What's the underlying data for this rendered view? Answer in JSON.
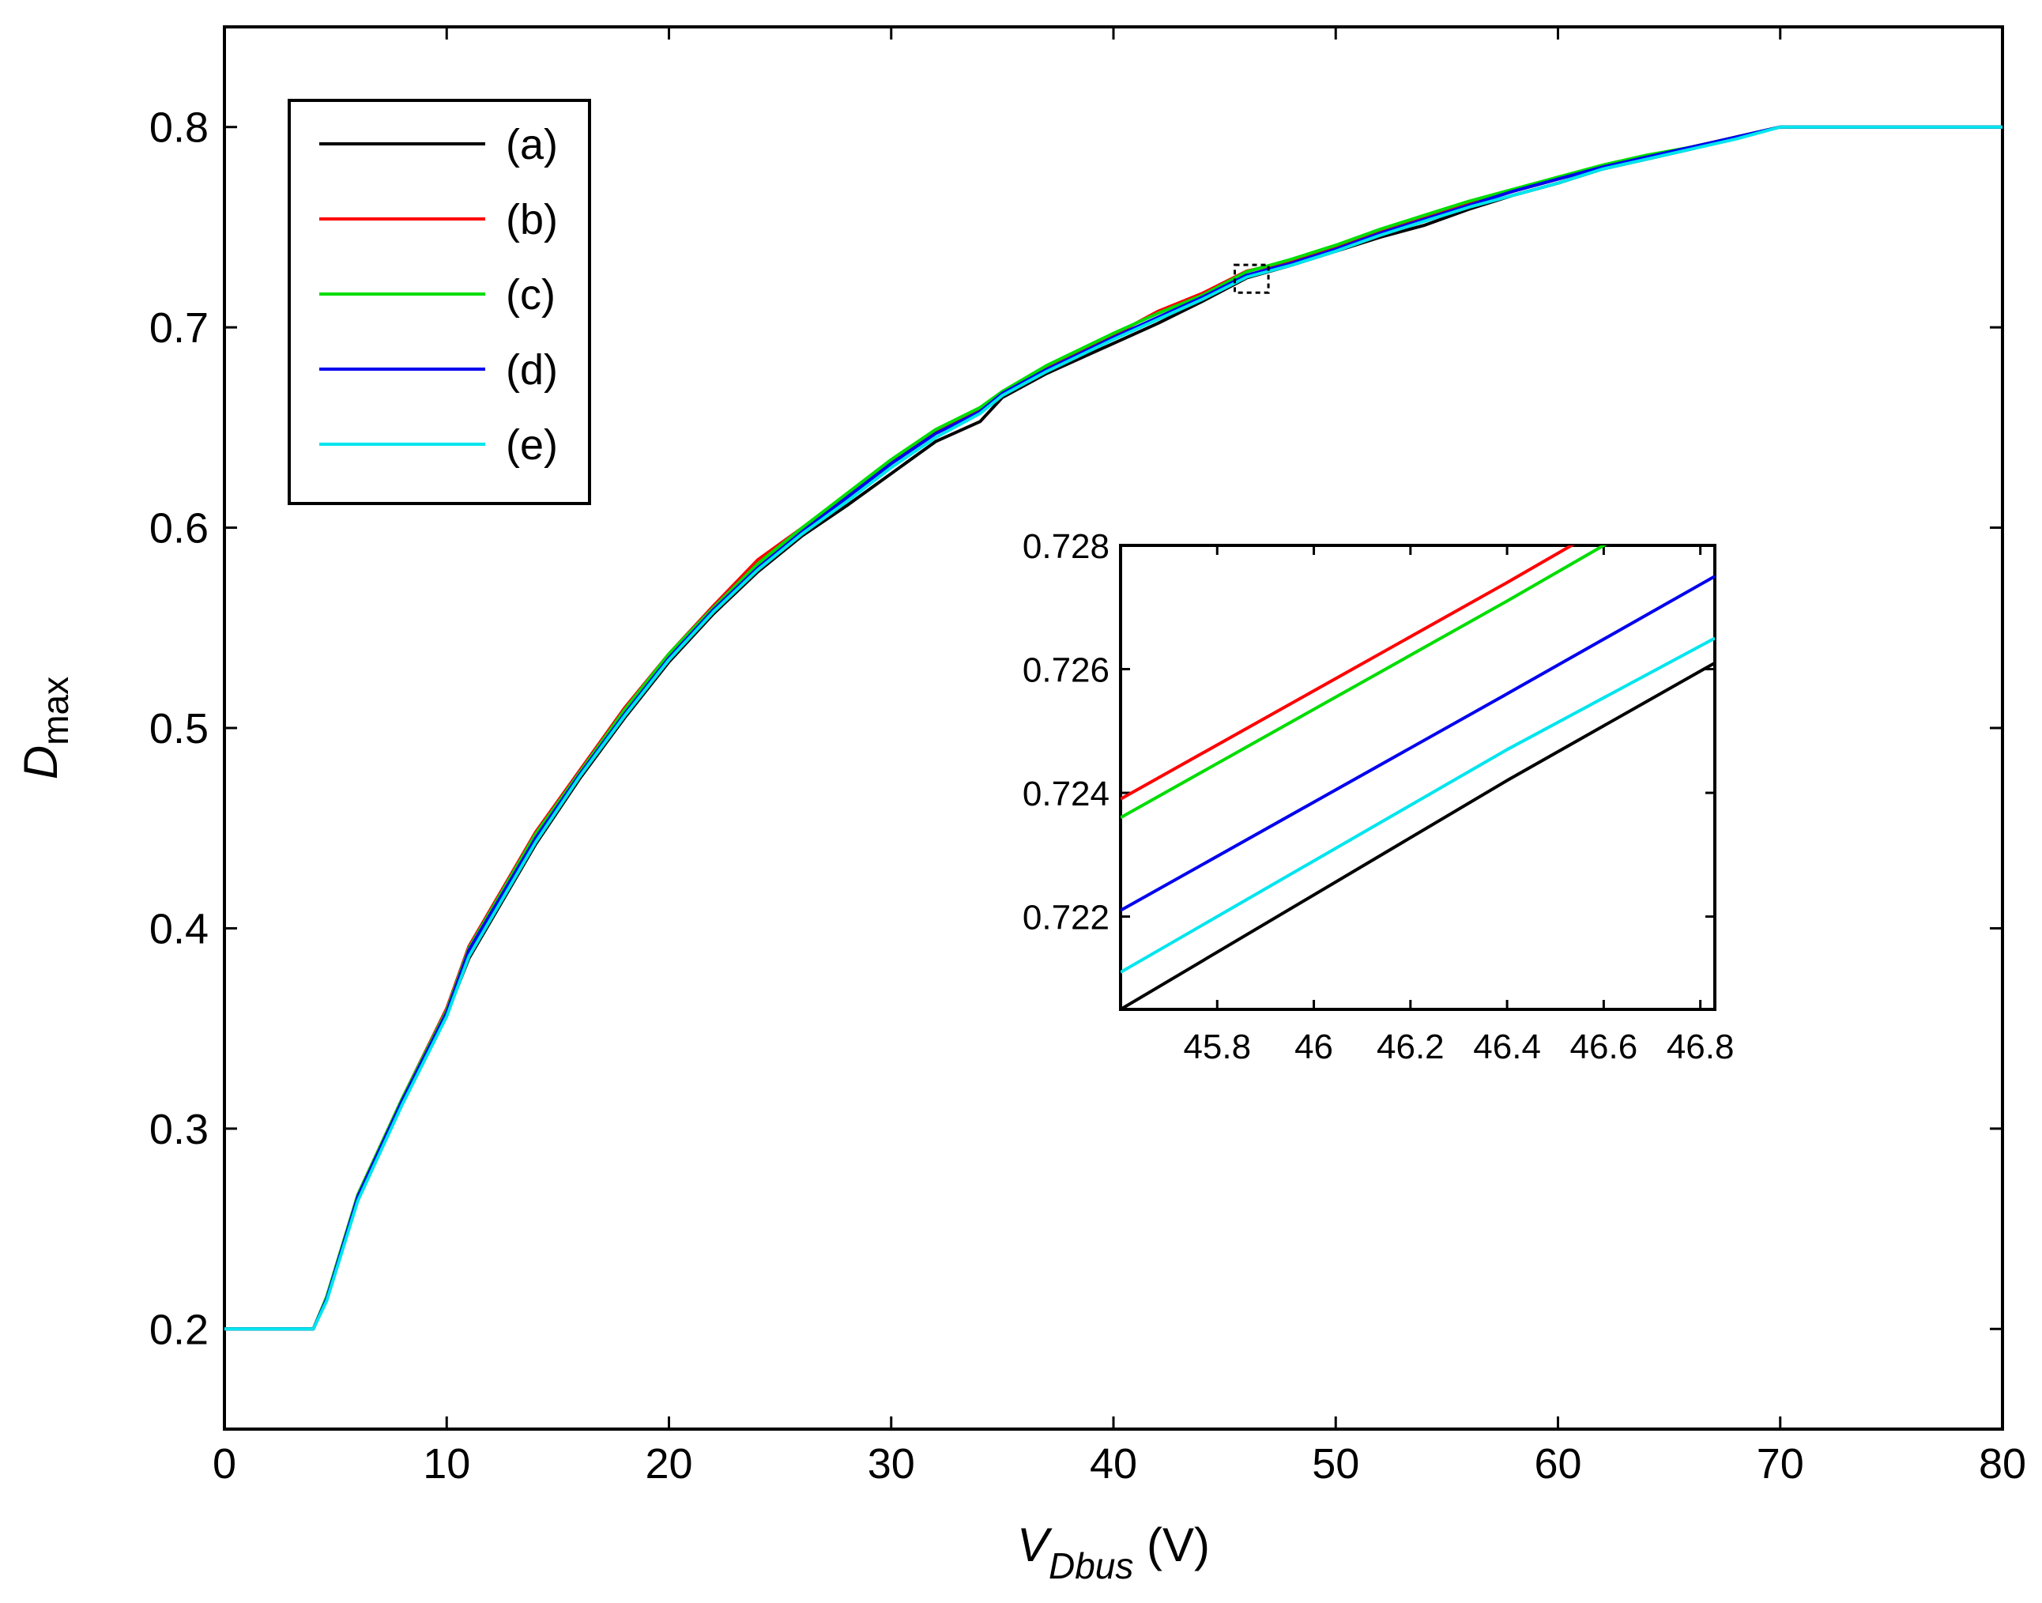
{
  "chart_data": {
    "type": "line",
    "title": "",
    "xlabel": {
      "main": "V",
      "subscript": "Dbus",
      "unit": " (V)"
    },
    "ylabel": {
      "main": "D",
      "subscript": "max"
    },
    "xlim": [
      0,
      80
    ],
    "ylim": [
      0.15,
      0.85
    ],
    "xticks": [
      0,
      10,
      20,
      30,
      40,
      50,
      60,
      70,
      80
    ],
    "yticks": [
      0.2,
      0.3,
      0.4,
      0.5,
      0.6,
      0.7,
      0.8
    ],
    "legend_position": "top-left",
    "zoom_box": {
      "x": [
        45.6,
        46.83
      ],
      "y": [
        0.7205,
        0.728
      ]
    },
    "series": [
      {
        "name": "(a)",
        "color": "#000000",
        "x": [
          0,
          4,
          4.6,
          6,
          8,
          10,
          11,
          14,
          16,
          18,
          20,
          22,
          24,
          26,
          28,
          30,
          32,
          34,
          35,
          37,
          40,
          42,
          44,
          46,
          48,
          50,
          52,
          54,
          56,
          58,
          60,
          62,
          64,
          66,
          68,
          70,
          80
        ],
        "y": [
          0.2,
          0.2,
          0.215,
          0.265,
          0.313,
          0.357,
          0.385,
          0.442,
          0.475,
          0.505,
          0.533,
          0.557,
          0.578,
          0.596,
          0.611,
          0.627,
          0.643,
          0.653,
          0.665,
          0.677,
          0.692,
          0.702,
          0.713,
          0.7247,
          0.731,
          0.738,
          0.745,
          0.751,
          0.759,
          0.766,
          0.772,
          0.779,
          0.784,
          0.789,
          0.795,
          0.8,
          0.8
        ]
      },
      {
        "name": "(b)",
        "color": "#ff0000",
        "x": [
          0,
          4,
          4.6,
          6,
          8,
          10,
          11,
          14,
          16,
          18,
          20,
          22,
          24,
          26,
          28,
          30,
          32,
          34,
          35,
          37,
          40,
          42,
          44,
          46,
          48,
          50,
          52,
          54,
          56,
          58,
          60,
          62,
          64,
          66,
          68,
          70,
          80
        ],
        "y": [
          0.2,
          0.2,
          0.216,
          0.267,
          0.315,
          0.36,
          0.391,
          0.448,
          0.479,
          0.51,
          0.537,
          0.561,
          0.584,
          0.6,
          0.616,
          0.633,
          0.648,
          0.659,
          0.667,
          0.68,
          0.696,
          0.708,
          0.717,
          0.7281,
          0.733,
          0.74,
          0.748,
          0.755,
          0.762,
          0.768,
          0.774,
          0.78,
          0.785,
          0.79,
          0.795,
          0.8,
          0.8
        ]
      },
      {
        "name": "(c)",
        "color": "#00dd00",
        "x": [
          0,
          4,
          4.6,
          6,
          8,
          10,
          11,
          14,
          16,
          18,
          20,
          22,
          24,
          26,
          28,
          30,
          32,
          34,
          35,
          37,
          40,
          42,
          44,
          46,
          48,
          50,
          52,
          54,
          56,
          58,
          60,
          62,
          64,
          66,
          68,
          70,
          80
        ],
        "y": [
          0.2,
          0.2,
          0.216,
          0.267,
          0.315,
          0.359,
          0.39,
          0.447,
          0.478,
          0.509,
          0.537,
          0.56,
          0.582,
          0.6,
          0.617,
          0.634,
          0.649,
          0.66,
          0.668,
          0.681,
          0.697,
          0.707,
          0.716,
          0.7278,
          0.734,
          0.741,
          0.749,
          0.756,
          0.763,
          0.769,
          0.775,
          0.781,
          0.786,
          0.79,
          0.795,
          0.8,
          0.8
        ]
      },
      {
        "name": "(d)",
        "color": "#0000ee",
        "x": [
          0,
          4,
          4.6,
          6,
          8,
          10,
          11,
          14,
          16,
          18,
          20,
          22,
          24,
          26,
          28,
          30,
          32,
          34,
          35,
          37,
          40,
          42,
          44,
          46,
          48,
          50,
          52,
          54,
          56,
          58,
          60,
          62,
          64,
          66,
          68,
          70,
          80
        ],
        "y": [
          0.2,
          0.2,
          0.215,
          0.266,
          0.314,
          0.358,
          0.389,
          0.445,
          0.477,
          0.507,
          0.535,
          0.559,
          0.58,
          0.598,
          0.615,
          0.632,
          0.647,
          0.658,
          0.667,
          0.679,
          0.695,
          0.705,
          0.715,
          0.7261,
          0.732,
          0.739,
          0.747,
          0.754,
          0.761,
          0.768,
          0.774,
          0.78,
          0.785,
          0.79,
          0.795,
          0.8,
          0.8
        ]
      },
      {
        "name": "(e)",
        "color": "#00e5ee",
        "x": [
          0,
          4,
          4.6,
          6,
          8,
          10,
          11,
          14,
          16,
          18,
          20,
          22,
          24,
          26,
          28,
          30,
          32,
          34,
          35,
          37,
          40,
          42,
          44,
          46,
          48,
          50,
          52,
          54,
          56,
          58,
          60,
          62,
          64,
          66,
          68,
          70,
          80
        ],
        "y": [
          0.2,
          0.2,
          0.214,
          0.264,
          0.312,
          0.356,
          0.386,
          0.443,
          0.476,
          0.506,
          0.534,
          0.558,
          0.579,
          0.597,
          0.613,
          0.63,
          0.645,
          0.657,
          0.666,
          0.678,
          0.694,
          0.704,
          0.714,
          0.7251,
          0.731,
          0.738,
          0.746,
          0.753,
          0.76,
          0.766,
          0.772,
          0.779,
          0.784,
          0.789,
          0.794,
          0.8,
          0.8
        ]
      }
    ],
    "inset": {
      "xlim": [
        45.6,
        46.83
      ],
      "ylim": [
        0.7205,
        0.728
      ],
      "xticks": [
        45.8,
        46,
        46.2,
        46.4,
        46.6,
        46.8
      ],
      "yticks": [
        0.722,
        0.724,
        0.726,
        0.728
      ],
      "xtick_labels": [
        "45.8",
        "46",
        "46.2",
        "46.4",
        "46.6",
        "46.8"
      ],
      "ytick_labels": [
        "0.722",
        "0.724",
        "0.726",
        "0.728"
      ],
      "series": [
        {
          "name": "(a)",
          "color": "#000000",
          "x": [
            45.6,
            46.4,
            46.83
          ],
          "y": [
            0.7205,
            0.7242,
            0.7261
          ]
        },
        {
          "name": "(b)",
          "color": "#ff0000",
          "x": [
            45.6,
            46.4,
            46.6,
            46.83
          ],
          "y": [
            0.7239,
            0.7274,
            0.7283,
            0.7293
          ]
        },
        {
          "name": "(c)",
          "color": "#00dd00",
          "x": [
            45.6,
            46.4,
            46.6,
            46.83
          ],
          "y": [
            0.7236,
            0.7271,
            0.728,
            0.729
          ]
        },
        {
          "name": "(d)",
          "color": "#0000ee",
          "x": [
            45.6,
            46.4,
            46.83
          ],
          "y": [
            0.7221,
            0.7256,
            0.7275
          ]
        },
        {
          "name": "(e)",
          "color": "#00e5ee",
          "x": [
            45.6,
            46.4,
            46.83
          ],
          "y": [
            0.7211,
            0.7247,
            0.7265
          ]
        }
      ]
    }
  }
}
